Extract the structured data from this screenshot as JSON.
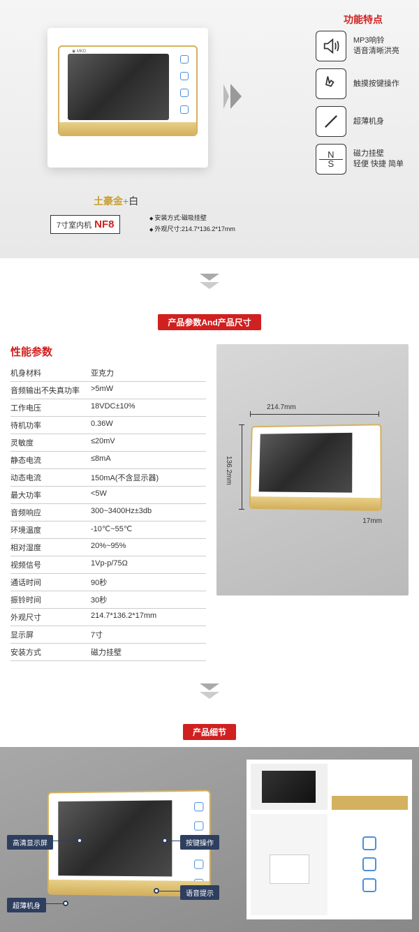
{
  "hero": {
    "color_name_gold": "土豪金",
    "color_name_plus": "+",
    "color_name_white": "白",
    "model_prefix": "7寸室内机",
    "model": "NF8",
    "spec1": "安装方式:磁吸挂壁",
    "spec2": "外观尺寸:214.7*136.2*17mm"
  },
  "features": {
    "title": "功能特点",
    "items": [
      {
        "l1": "MP3响铃",
        "l2": "语音清晰洪亮"
      },
      {
        "l1": "触摸按键操作",
        "l2": ""
      },
      {
        "l1": "超薄机身",
        "l2": ""
      },
      {
        "l1": "磁力挂壁",
        "l2": "轻便 快捷 简单"
      }
    ]
  },
  "band1": "产品参数And产品尺寸",
  "band2": "产品细节",
  "specs": {
    "title": "性能参数",
    "rows": [
      {
        "lbl": "机身材料",
        "val": "亚克力"
      },
      {
        "lbl": "音频输出不失真功率",
        "val": ">5mW"
      },
      {
        "lbl": "工作电压",
        "val": "18VDC±10%"
      },
      {
        "lbl": "待机功率",
        "val": "0.36W"
      },
      {
        "lbl": "灵敏度",
        "val": "≤20mV"
      },
      {
        "lbl": "静态电流",
        "val": "≤8mA"
      },
      {
        "lbl": "动态电流",
        "val": "150mA(不含显示器)"
      },
      {
        "lbl": "最大功率",
        "val": "<5W"
      },
      {
        "lbl": "音频响应",
        "val": "300~3400Hz±3db"
      },
      {
        "lbl": "环境温度",
        "val": "-10℃~55℃"
      },
      {
        "lbl": "相对湿度",
        "val": "20%~95%"
      },
      {
        "lbl": "视频信号",
        "val": "1Vp-p/75Ω"
      },
      {
        "lbl": "通话时间",
        "val": "90秒"
      },
      {
        "lbl": "振铃时间",
        "val": "30秒"
      },
      {
        "lbl": "外观尺寸",
        "val": "214.7*136.2*17mm"
      },
      {
        "lbl": "显示屏",
        "val": "7寸"
      },
      {
        "lbl": "安装方式",
        "val": "磁力挂壁"
      }
    ]
  },
  "dims": {
    "w": "214.7mm",
    "h": "136.2mm",
    "d": "17mm"
  },
  "details": {
    "callouts": {
      "c1": "高清显示屏",
      "c2": "超薄机身",
      "c3": "按键操作",
      "c4": "语音提示"
    }
  },
  "colors": {
    "accent": "#d02020",
    "gold": "#d4b15f",
    "callout": "#2d3e5f"
  }
}
